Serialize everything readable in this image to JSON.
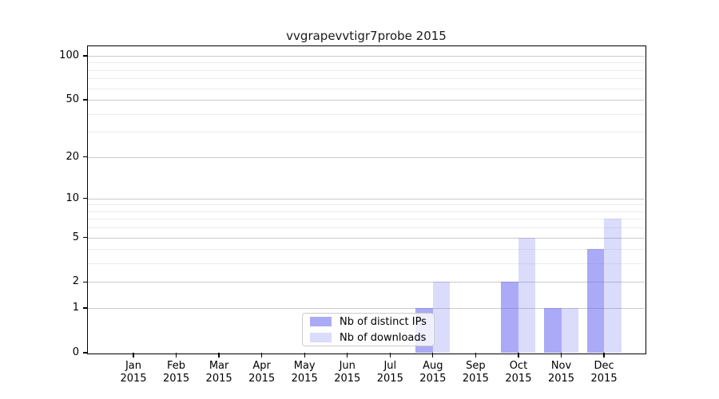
{
  "chart_data": {
    "type": "bar",
    "title": "vvgrapevvtigr7probe 2015",
    "year_label": "2015",
    "categories": [
      "Jan",
      "Feb",
      "Mar",
      "Apr",
      "May",
      "Jun",
      "Jul",
      "Aug",
      "Sep",
      "Oct",
      "Nov",
      "Dec"
    ],
    "series": [
      {
        "name": "Nb of distinct IPs",
        "color": "rgba(100,100,239,0.55)",
        "values": [
          0,
          0,
          0,
          0,
          0,
          0,
          0,
          1,
          0,
          2,
          1,
          4
        ]
      },
      {
        "name": "Nb of downloads",
        "color": "rgba(100,100,239,0.23)",
        "values": [
          0,
          0,
          0,
          0,
          0,
          0,
          0,
          2,
          0,
          5,
          1,
          7
        ]
      }
    ],
    "y_axis": {
      "scale": "log10(value+1)",
      "ticks": [
        0,
        1,
        2,
        5,
        10,
        20,
        50,
        100
      ],
      "minor_gridlines": [
        3,
        4,
        6,
        7,
        8,
        9,
        30,
        40,
        60,
        70,
        80,
        90
      ],
      "range": [
        0,
        100
      ]
    },
    "x_axis": {
      "label_line2": "2015"
    },
    "legend": {
      "position": "bottom-center",
      "entries": [
        "Nb of distinct IPs",
        "Nb of downloads"
      ]
    },
    "grid": true,
    "colors": {
      "bar_dark": "#aaaaf6",
      "bar_light": "#dcdcf8",
      "gridline_major": "#cbcbcb",
      "gridline_minor": "#ececec"
    }
  }
}
